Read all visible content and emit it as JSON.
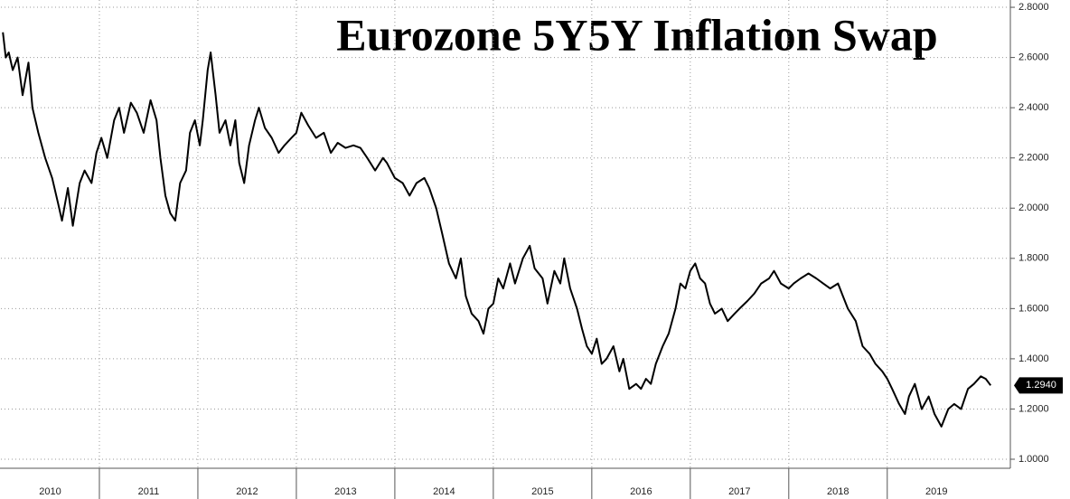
{
  "chart_data": {
    "type": "line",
    "title": "Eurozone 5Y5Y Inflation Swap",
    "x": [
      2010.02,
      2010.05,
      2010.08,
      2010.12,
      2010.17,
      2010.22,
      2010.28,
      2010.32,
      2010.38,
      2010.45,
      2010.52,
      2010.58,
      2010.62,
      2010.68,
      2010.73,
      2010.8,
      2010.85,
      2010.92,
      2010.97,
      2011.02,
      2011.08,
      2011.15,
      2011.2,
      2011.25,
      2011.32,
      2011.38,
      2011.45,
      2011.52,
      2011.58,
      2011.62,
      2011.67,
      2011.72,
      2011.77,
      2011.82,
      2011.88,
      2011.92,
      2011.97,
      2012.02,
      2012.05,
      2012.1,
      2012.13,
      2012.18,
      2012.22,
      2012.28,
      2012.33,
      2012.38,
      2012.42,
      2012.47,
      2012.52,
      2012.58,
      2012.62,
      2012.68,
      2012.75,
      2012.82,
      2012.88,
      2012.95,
      2013.0,
      2013.05,
      2013.12,
      2013.2,
      2013.28,
      2013.35,
      2013.42,
      2013.5,
      2013.58,
      2013.65,
      2013.72,
      2013.8,
      2013.88,
      2013.92,
      2014.0,
      2014.08,
      2014.15,
      2014.22,
      2014.3,
      2014.35,
      2014.42,
      2014.48,
      2014.55,
      2014.62,
      2014.67,
      2014.72,
      2014.78,
      2014.85,
      2014.9,
      2014.95,
      2015.0,
      2015.05,
      2015.1,
      2015.17,
      2015.22,
      2015.3,
      2015.37,
      2015.42,
      2015.5,
      2015.55,
      2015.62,
      2015.68,
      2015.72,
      2015.78,
      2015.85,
      2015.9,
      2015.95,
      2016.0,
      2016.05,
      2016.1,
      2016.15,
      2016.22,
      2016.28,
      2016.32,
      2016.38,
      2016.45,
      2016.5,
      2016.55,
      2016.6,
      2016.65,
      2016.72,
      2016.78,
      2016.85,
      2016.9,
      2016.95,
      2017.0,
      2017.05,
      2017.1,
      2017.15,
      2017.2,
      2017.25,
      2017.32,
      2017.38,
      2017.45,
      2017.5,
      2017.58,
      2017.65,
      2017.72,
      2017.8,
      2017.85,
      2017.92,
      2018.0,
      2018.05,
      2018.12,
      2018.2,
      2018.28,
      2018.35,
      2018.42,
      2018.5,
      2018.55,
      2018.6,
      2018.68,
      2018.75,
      2018.82,
      2018.88,
      2018.95,
      2019.0,
      2019.05,
      2019.12,
      2019.18,
      2019.22,
      2019.28,
      2019.35,
      2019.42,
      2019.48,
      2019.55,
      2019.62,
      2019.68,
      2019.75,
      2019.82,
      2019.88,
      2019.95,
      2020.0,
      2020.05
    ],
    "series": [
      {
        "color": "#000000",
        "values": [
          2.7,
          2.6,
          2.62,
          2.55,
          2.6,
          2.45,
          2.58,
          2.4,
          2.3,
          2.2,
          2.12,
          2.02,
          1.95,
          2.08,
          1.93,
          2.1,
          2.15,
          2.1,
          2.22,
          2.28,
          2.2,
          2.35,
          2.4,
          2.3,
          2.42,
          2.38,
          2.3,
          2.43,
          2.35,
          2.2,
          2.05,
          1.98,
          1.95,
          2.1,
          2.15,
          2.3,
          2.35,
          2.25,
          2.35,
          2.55,
          2.62,
          2.45,
          2.3,
          2.35,
          2.25,
          2.35,
          2.18,
          2.1,
          2.25,
          2.35,
          2.4,
          2.32,
          2.28,
          2.22,
          2.25,
          2.28,
          2.3,
          2.38,
          2.33,
          2.28,
          2.3,
          2.22,
          2.26,
          2.24,
          2.25,
          2.24,
          2.2,
          2.15,
          2.2,
          2.18,
          2.12,
          2.1,
          2.05,
          2.1,
          2.12,
          2.08,
          2.0,
          1.9,
          1.78,
          1.72,
          1.8,
          1.65,
          1.58,
          1.55,
          1.5,
          1.6,
          1.62,
          1.72,
          1.68,
          1.78,
          1.7,
          1.8,
          1.85,
          1.76,
          1.72,
          1.62,
          1.75,
          1.7,
          1.8,
          1.68,
          1.6,
          1.52,
          1.45,
          1.42,
          1.48,
          1.38,
          1.4,
          1.45,
          1.35,
          1.4,
          1.28,
          1.3,
          1.28,
          1.32,
          1.3,
          1.38,
          1.45,
          1.5,
          1.6,
          1.7,
          1.68,
          1.75,
          1.78,
          1.72,
          1.7,
          1.62,
          1.58,
          1.6,
          1.55,
          1.58,
          1.6,
          1.63,
          1.66,
          1.7,
          1.72,
          1.75,
          1.7,
          1.68,
          1.7,
          1.72,
          1.74,
          1.72,
          1.7,
          1.68,
          1.7,
          1.65,
          1.6,
          1.55,
          1.45,
          1.42,
          1.38,
          1.35,
          1.32,
          1.28,
          1.22,
          1.18,
          1.25,
          1.3,
          1.2,
          1.25,
          1.18,
          1.13,
          1.2,
          1.22,
          1.2,
          1.28,
          1.3,
          1.33,
          1.32,
          1.294
        ]
      }
    ],
    "last_value": {
      "value": 1.294,
      "label": "1.2940"
    },
    "xlim": [
      2010,
      2020.25
    ],
    "xticks": [
      {
        "value": 2010.5,
        "label": "2010"
      },
      {
        "value": 2011.5,
        "label": "2011"
      },
      {
        "value": 2012.5,
        "label": "2012"
      },
      {
        "value": 2013.5,
        "label": "2013"
      },
      {
        "value": 2014.5,
        "label": "2014"
      },
      {
        "value": 2015.5,
        "label": "2015"
      },
      {
        "value": 2016.5,
        "label": "2016"
      },
      {
        "value": 2017.5,
        "label": "2017"
      },
      {
        "value": 2018.5,
        "label": "2018"
      },
      {
        "value": 2019.5,
        "label": "2019"
      }
    ],
    "ylim": [
      0.964,
      2.829
    ],
    "yticks": [
      {
        "value": 1.0,
        "label": "1.0000"
      },
      {
        "value": 1.2,
        "label": "1.2000"
      },
      {
        "value": 1.4,
        "label": "1.4000"
      },
      {
        "value": 1.6,
        "label": "1.6000"
      },
      {
        "value": 1.8,
        "label": "1.8000"
      },
      {
        "value": 2.0,
        "label": "2.0000"
      },
      {
        "value": 2.2,
        "label": "2.2000"
      },
      {
        "value": 2.4,
        "label": "2.4000"
      },
      {
        "value": 2.6,
        "label": "2.6000"
      },
      {
        "value": 2.8,
        "label": "2.8000"
      }
    ],
    "grid": true
  }
}
